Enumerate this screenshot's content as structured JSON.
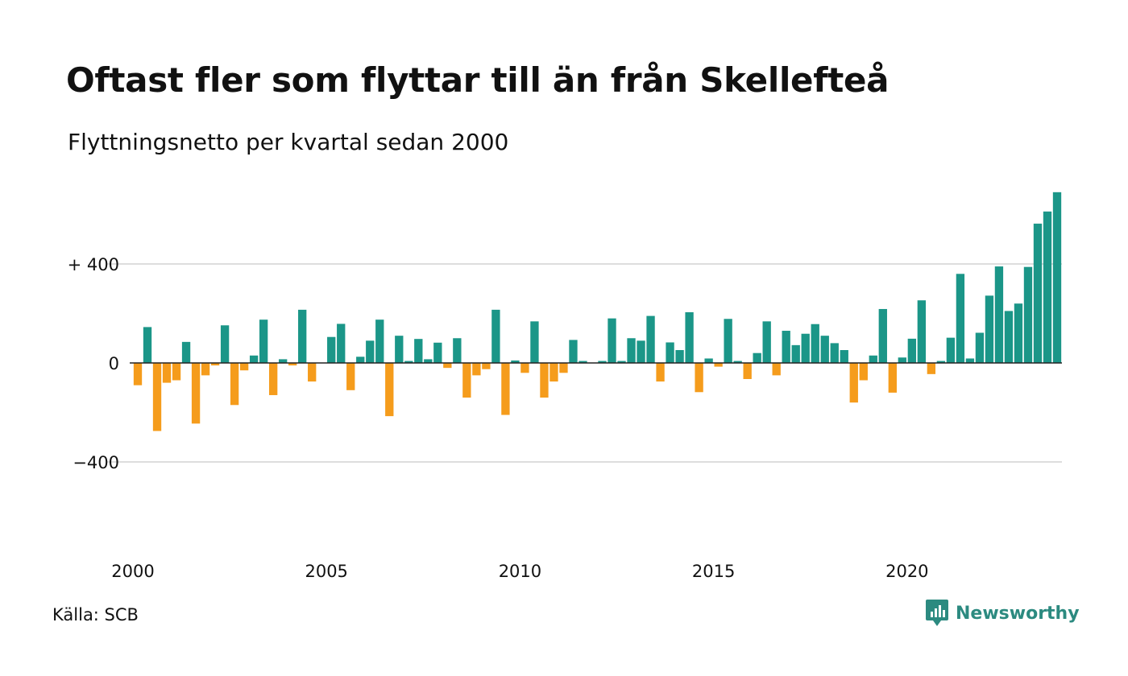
{
  "title": "Oftast fler som flyttar till än från Skellefteå",
  "subtitle": "Flyttningsnetto per kvartal sedan 2000",
  "source": "Källa: SCB",
  "brand": {
    "name": "Newsworthy",
    "icon": "newsworthy-logo-icon",
    "color": "#2c8a80"
  },
  "chart_data": {
    "type": "bar",
    "title": "Oftast fler som flyttar till än från Skellefteå",
    "subtitle": "Flyttningsnetto per kvartal sedan 2000",
    "ylim": [
      -750,
      700
    ],
    "yticks": [
      {
        "value": 400,
        "label": "+ 400"
      },
      {
        "value": 0,
        "label": "0"
      },
      {
        "value": -400,
        "label": "−400"
      }
    ],
    "xticks": [
      {
        "year": 2000,
        "label": "2000"
      },
      {
        "year": 2005,
        "label": "2005"
      },
      {
        "year": 2010,
        "label": "2010"
      },
      {
        "year": 2015,
        "label": "2015"
      },
      {
        "year": 2020,
        "label": "2020"
      }
    ],
    "grid": true,
    "colors": {
      "positive": "#1b9688",
      "negative": "#f59c1c",
      "grid": "#dddddd",
      "baseline": "#222222"
    },
    "start_period": "2000 Q1",
    "values": [
      -90,
      145,
      -275,
      -80,
      -70,
      85,
      -245,
      -50,
      -10,
      152,
      -170,
      -30,
      30,
      175,
      -130,
      15,
      -10,
      215,
      -75,
      0,
      105,
      158,
      -110,
      25,
      90,
      175,
      -215,
      110,
      8,
      97,
      15,
      82,
      -20,
      100,
      -140,
      -50,
      -25,
      215,
      -210,
      10,
      -40,
      168,
      -140,
      -75,
      -40,
      93,
      8,
      0,
      8,
      180,
      8,
      100,
      90,
      190,
      -75,
      83,
      52,
      205,
      -118,
      18,
      -15,
      178,
      8,
      -65,
      40,
      168,
      -50,
      130,
      72,
      118,
      157,
      110,
      80,
      52,
      -160,
      -70,
      30,
      218,
      -120,
      22,
      98,
      253,
      -45,
      8,
      102,
      360,
      18,
      122,
      272,
      390,
      210,
      240,
      388,
      563,
      612,
      690
    ]
  }
}
